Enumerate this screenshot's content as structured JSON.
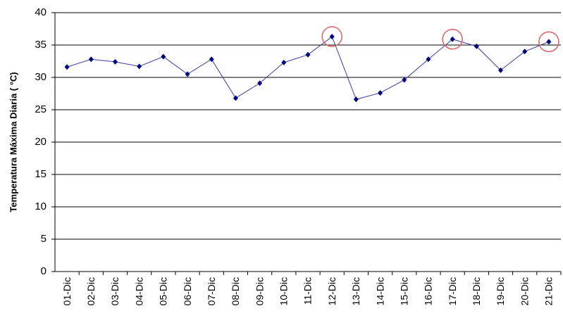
{
  "chart_data": {
    "type": "line",
    "y_label": "Temperatura Máxima Diaria ( °C)",
    "categories": [
      "01-Dic",
      "02-Dic",
      "03-Dic",
      "04-Dic",
      "05-Dic",
      "06-Dic",
      "07-Dic",
      "08-Dic",
      "09-Dic",
      "10-Dic",
      "11-Dic",
      "12-Dic",
      "13-Dic",
      "14-Dic",
      "15-Dic",
      "16-Dic",
      "17-Dic",
      "18-Dic",
      "19-Dic",
      "20-Dic",
      "21-Dic"
    ],
    "series": [
      {
        "name": "Temperatura Máxima Diaria",
        "color": "#000080",
        "values": [
          31.6,
          32.8,
          32.4,
          31.7,
          33.2,
          30.5,
          32.8,
          26.8,
          29.1,
          32.3,
          33.5,
          36.3,
          26.6,
          27.6,
          29.6,
          32.8,
          35.9,
          34.8,
          31.1,
          34.0,
          35.5
        ]
      }
    ],
    "ylim": [
      0,
      40
    ],
    "yticks": [
      0,
      5,
      10,
      15,
      20,
      25,
      30,
      35,
      40
    ],
    "grid": true
  }
}
